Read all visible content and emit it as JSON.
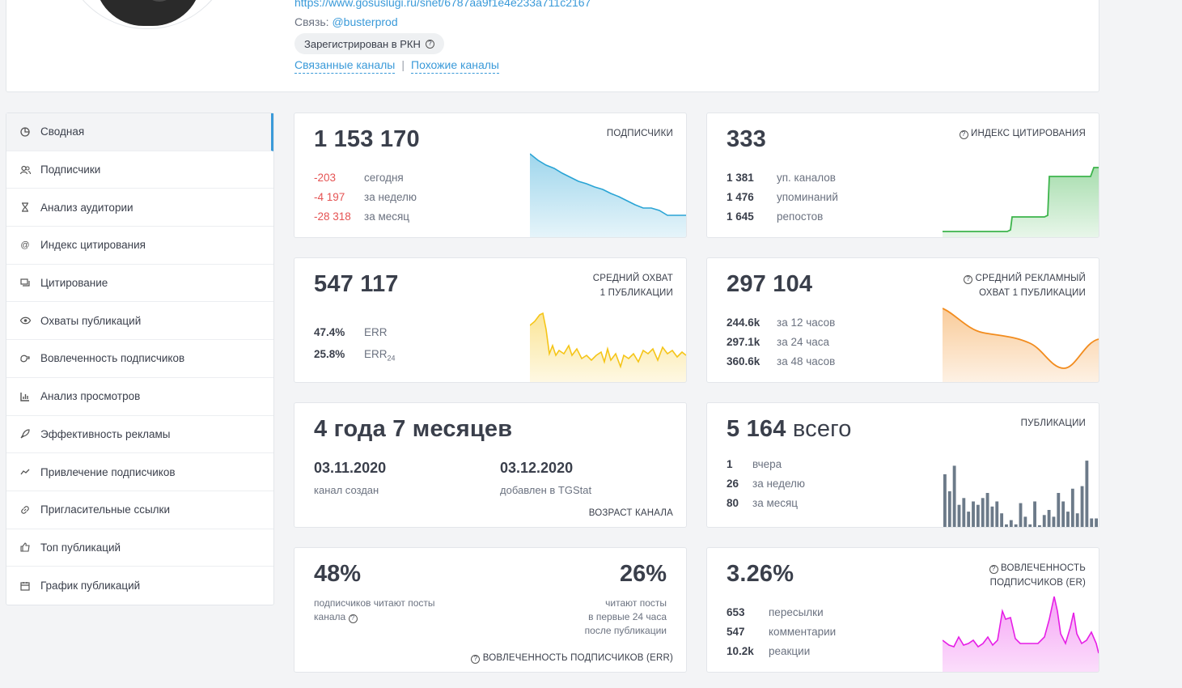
{
  "header": {
    "link": "https://www.gosuslugi.ru/snet/6787aa9f1e4e233a711c2167",
    "contact_label": "Связь:",
    "contact_handle": "@busterprod",
    "rkn_badge": "Зарегистрирован в РКН",
    "related_channels": "Связанные каналы",
    "separator": "|",
    "similar_channels": "Похожие каналы"
  },
  "sidebar": {
    "items": [
      {
        "label": "Сводная",
        "icon": "pie-chart-icon"
      },
      {
        "label": "Подписчики",
        "icon": "users-icon"
      },
      {
        "label": "Анализ аудитории",
        "icon": "hourglass-icon"
      },
      {
        "label": "Индекс цитирования",
        "icon": "at-icon"
      },
      {
        "label": "Цитирование",
        "icon": "quote-icon"
      },
      {
        "label": "Охваты публикаций",
        "icon": "eye-icon"
      },
      {
        "label": "Вовлеченность подписчиков",
        "icon": "hand-icon"
      },
      {
        "label": "Анализ просмотров",
        "icon": "bar-chart-icon"
      },
      {
        "label": "Эффективность рекламы",
        "icon": "rocket-icon"
      },
      {
        "label": "Привлечение подписчиков",
        "icon": "trend-icon"
      },
      {
        "label": "Пригласительные ссылки",
        "icon": "link-icon"
      },
      {
        "label": "Топ публикаций",
        "icon": "thumbs-up-icon"
      },
      {
        "label": "График публикаций",
        "icon": "calendar-icon"
      }
    ]
  },
  "subscribers": {
    "value": "1 153 170",
    "label": "подписчики",
    "rows": [
      {
        "value": "-203",
        "label": "сегодня"
      },
      {
        "value": "-4 197",
        "label": "за неделю"
      },
      {
        "value": "-28 318",
        "label": "за месяц"
      }
    ],
    "color": "#2aa4d5"
  },
  "citation": {
    "value": "333",
    "label": "индекс цитирования",
    "rows": [
      {
        "value": "1 381",
        "label": "уп. каналов"
      },
      {
        "value": "1 476",
        "label": "упоминаний"
      },
      {
        "value": "1 645",
        "label": "репостов"
      }
    ],
    "color": "#3cb44b"
  },
  "avg_reach": {
    "value": "547 117",
    "label_1": "средний охват",
    "label_2": "1 публикации",
    "rows": [
      {
        "value": "47.4%",
        "label": "ERR"
      },
      {
        "value": "25.8%",
        "label": "ERR",
        "sub": "24"
      }
    ],
    "color": "#f5c518"
  },
  "ad_reach": {
    "value": "297 104",
    "label_1": "средний рекламный",
    "label_2": "охват 1 публикации",
    "rows": [
      {
        "value": "244.6k",
        "label": "за 12 часов"
      },
      {
        "value": "297.1k",
        "label": "за 24 часа"
      },
      {
        "value": "360.6k",
        "label": "за 48 часов"
      }
    ],
    "color": "#f28c1e"
  },
  "age": {
    "value": "4 года 7 месяцев",
    "created_date": "03.11.2020",
    "created_label": "канал создан",
    "added_date": "03.12.2020",
    "added_label": "добавлен в TGStat",
    "label": "возраст канала"
  },
  "publications": {
    "value": "5 164",
    "suffix": "всего",
    "label": "публикации",
    "rows": [
      {
        "value": "1",
        "label": "вчера"
      },
      {
        "value": "26",
        "label": "за неделю"
      },
      {
        "value": "80",
        "label": "за месяц"
      }
    ],
    "color": "#6c7a89"
  },
  "err": {
    "value_1": "48%",
    "desc_1_line1": "подписчиков читают посты",
    "desc_1_line2": "канала",
    "value_2": "26%",
    "desc_2_line1": "читают посты",
    "desc_2_line2": "в первые 24 часа",
    "desc_2_line3": "после публикации",
    "label": "вовлеченность подписчиков (ERR)"
  },
  "er": {
    "value": "3.26%",
    "label_1": "вовлеченность",
    "label_2": "подписчиков (ER)",
    "rows": [
      {
        "value": "653",
        "label": "пересылки"
      },
      {
        "value": "547",
        "label": "комментарии"
      },
      {
        "value": "10.2k",
        "label": "реакции"
      }
    ],
    "color": "#e61ee6"
  }
}
